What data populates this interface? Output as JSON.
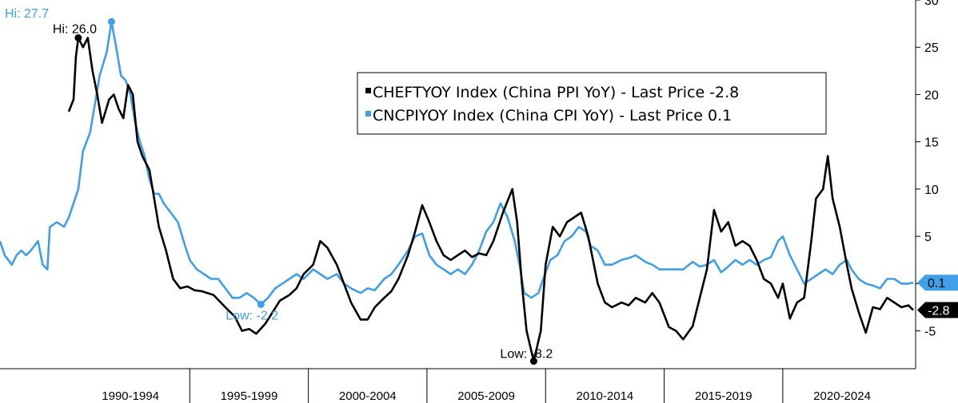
{
  "chart_data": {
    "type": "line",
    "x_start": 1987.0,
    "x_end": 2025.6,
    "ylim": [
      -9,
      30
    ],
    "y_ticks": [
      -5,
      0,
      5,
      10,
      15,
      20,
      25,
      30
    ],
    "x_categories": [
      "1990-1994",
      "1995-1999",
      "2000-2004",
      "2005-2009",
      "2010-2014",
      "2015-2019",
      "2020-2024"
    ],
    "x_category_bounds": [
      [
        1990,
        1995
      ],
      [
        1995,
        2000
      ],
      [
        2000,
        2005
      ],
      [
        2005,
        2010
      ],
      [
        2010,
        2015
      ],
      [
        2015,
        2020
      ],
      [
        2020,
        2025
      ]
    ],
    "legend": [
      {
        "label": "CHEFTYOY Index (China PPI YoY) - Last Price -2.8",
        "color": "#000000"
      },
      {
        "label": "CNCPIYOY Index (China CPI YoY) - Last Price 0.1",
        "color": "#3f9fe8"
      }
    ],
    "series": [
      {
        "name": "CHEFTYOY Index (China PPI YoY)",
        "color": "#000000",
        "last_value": -2.8,
        "last_label": "-2.8",
        "points": [
          [
            1989.9,
            18.2
          ],
          [
            1990.1,
            19.5
          ],
          [
            1990.2,
            24.0
          ],
          [
            1990.3,
            26.0
          ],
          [
            1990.5,
            25.0
          ],
          [
            1990.7,
            26.0
          ],
          [
            1990.9,
            22.5
          ],
          [
            1991.1,
            20.0
          ],
          [
            1991.3,
            17.0
          ],
          [
            1991.6,
            19.5
          ],
          [
            1991.8,
            20.0
          ],
          [
            1992.0,
            18.5
          ],
          [
            1992.2,
            17.5
          ],
          [
            1992.4,
            21.0
          ],
          [
            1992.6,
            20.0
          ],
          [
            1992.8,
            15.0
          ],
          [
            1993.0,
            13.5
          ],
          [
            1993.3,
            12.0
          ],
          [
            1993.5,
            9.0
          ],
          [
            1993.7,
            6.0
          ],
          [
            1994.0,
            3.5
          ],
          [
            1994.3,
            0.5
          ],
          [
            1994.6,
            -0.5
          ],
          [
            1994.9,
            -0.3
          ],
          [
            1995.2,
            -0.7
          ],
          [
            1995.5,
            -0.8
          ],
          [
            1996.0,
            -1.2
          ],
          [
            1996.5,
            -2.5
          ],
          [
            1996.9,
            -3.5
          ],
          [
            1997.2,
            -5.0
          ],
          [
            1997.5,
            -4.8
          ],
          [
            1997.8,
            -5.3
          ],
          [
            1998.2,
            -4.2
          ],
          [
            1998.5,
            -3.0
          ],
          [
            1998.8,
            -1.8
          ],
          [
            1999.2,
            -1.2
          ],
          [
            1999.5,
            -0.5
          ],
          [
            1999.8,
            1.0
          ],
          [
            2000.2,
            2.0
          ],
          [
            2000.5,
            4.5
          ],
          [
            2000.8,
            3.8
          ],
          [
            2001.2,
            2.0
          ],
          [
            2001.5,
            0.0
          ],
          [
            2001.8,
            -2.0
          ],
          [
            2002.2,
            -3.8
          ],
          [
            2002.5,
            -3.8
          ],
          [
            2002.8,
            -2.5
          ],
          [
            2003.2,
            -1.5
          ],
          [
            2003.5,
            -0.8
          ],
          [
            2003.8,
            0.5
          ],
          [
            2004.2,
            3.0
          ],
          [
            2004.5,
            5.5
          ],
          [
            2004.8,
            8.3
          ],
          [
            2005.1,
            6.5
          ],
          [
            2005.4,
            4.5
          ],
          [
            2005.7,
            3.0
          ],
          [
            2006.0,
            2.5
          ],
          [
            2006.3,
            3.0
          ],
          [
            2006.6,
            3.5
          ],
          [
            2006.9,
            2.8
          ],
          [
            2007.2,
            3.2
          ],
          [
            2007.5,
            3.0
          ],
          [
            2007.8,
            4.5
          ],
          [
            2008.2,
            7.5
          ],
          [
            2008.6,
            10.0
          ],
          [
            2008.8,
            6.5
          ],
          [
            2009.0,
            0.0
          ],
          [
            2009.2,
            -5.0
          ],
          [
            2009.5,
            -8.2
          ],
          [
            2009.8,
            -5.0
          ],
          [
            2010.0,
            2.0
          ],
          [
            2010.3,
            6.0
          ],
          [
            2010.6,
            5.0
          ],
          [
            2010.9,
            6.5
          ],
          [
            2011.2,
            7.0
          ],
          [
            2011.5,
            7.5
          ],
          [
            2011.8,
            5.0
          ],
          [
            2012.2,
            0.0
          ],
          [
            2012.5,
            -2.0
          ],
          [
            2012.8,
            -2.5
          ],
          [
            2013.2,
            -2.0
          ],
          [
            2013.5,
            -2.3
          ],
          [
            2013.8,
            -1.5
          ],
          [
            2014.2,
            -2.0
          ],
          [
            2014.5,
            -1.0
          ],
          [
            2014.8,
            -2.0
          ],
          [
            2015.2,
            -4.6
          ],
          [
            2015.5,
            -5.0
          ],
          [
            2015.8,
            -5.9
          ],
          [
            2016.2,
            -4.5
          ],
          [
            2016.5,
            -1.5
          ],
          [
            2016.8,
            1.5
          ],
          [
            2017.1,
            7.8
          ],
          [
            2017.4,
            5.5
          ],
          [
            2017.7,
            6.5
          ],
          [
            2018.0,
            4.0
          ],
          [
            2018.3,
            4.5
          ],
          [
            2018.6,
            4.0
          ],
          [
            2018.9,
            2.5
          ],
          [
            2019.2,
            0.5
          ],
          [
            2019.5,
            0.0
          ],
          [
            2019.8,
            -1.5
          ],
          [
            2020.0,
            0.0
          ],
          [
            2020.3,
            -3.7
          ],
          [
            2020.6,
            -2.0
          ],
          [
            2020.9,
            -1.5
          ],
          [
            2021.2,
            4.5
          ],
          [
            2021.4,
            9.0
          ],
          [
            2021.7,
            10.0
          ],
          [
            2021.9,
            13.5
          ],
          [
            2022.1,
            9.0
          ],
          [
            2022.4,
            6.0
          ],
          [
            2022.7,
            2.0
          ],
          [
            2022.9,
            -0.5
          ],
          [
            2023.2,
            -3.0
          ],
          [
            2023.5,
            -5.2
          ],
          [
            2023.8,
            -2.5
          ],
          [
            2024.1,
            -2.7
          ],
          [
            2024.4,
            -1.5
          ],
          [
            2024.7,
            -2.0
          ],
          [
            2025.0,
            -2.5
          ],
          [
            2025.3,
            -2.3
          ],
          [
            2025.5,
            -2.8
          ]
        ]
      },
      {
        "name": "CNCPIYOY Index (China CPI YoY)",
        "color": "#3f9fe8",
        "last_value": 0.1,
        "last_label": "0.1",
        "points": [
          [
            1987.0,
            4.5
          ],
          [
            1987.2,
            3.0
          ],
          [
            1987.5,
            2.0
          ],
          [
            1987.7,
            3.0
          ],
          [
            1987.9,
            3.5
          ],
          [
            1988.1,
            3.0
          ],
          [
            1988.3,
            3.5
          ],
          [
            1988.6,
            4.5
          ],
          [
            1988.8,
            2.0
          ],
          [
            1989.0,
            1.5
          ],
          [
            1989.1,
            6.0
          ],
          [
            1989.4,
            6.5
          ],
          [
            1989.7,
            6.0
          ],
          [
            1989.9,
            7.0
          ],
          [
            1990.1,
            8.5
          ],
          [
            1990.3,
            10.0
          ],
          [
            1990.5,
            14.0
          ],
          [
            1990.8,
            16.0
          ],
          [
            1991.0,
            19.0
          ],
          [
            1991.2,
            22.0
          ],
          [
            1991.5,
            24.5
          ],
          [
            1991.7,
            27.7
          ],
          [
            1991.9,
            25.0
          ],
          [
            1992.1,
            22.0
          ],
          [
            1992.3,
            21.5
          ],
          [
            1992.5,
            20.0
          ],
          [
            1992.7,
            17.0
          ],
          [
            1992.9,
            15.0
          ],
          [
            1993.1,
            13.5
          ],
          [
            1993.3,
            11.0
          ],
          [
            1993.5,
            9.5
          ],
          [
            1993.7,
            9.5
          ],
          [
            1993.9,
            8.5
          ],
          [
            1994.2,
            7.5
          ],
          [
            1994.5,
            6.5
          ],
          [
            1994.8,
            4.0
          ],
          [
            1995.0,
            2.5
          ],
          [
            1995.3,
            1.5
          ],
          [
            1995.6,
            1.0
          ],
          [
            1995.9,
            0.5
          ],
          [
            1996.2,
            0.5
          ],
          [
            1996.5,
            -0.5
          ],
          [
            1996.8,
            -1.5
          ],
          [
            1997.1,
            -1.5
          ],
          [
            1997.4,
            -1.0
          ],
          [
            1997.7,
            -1.5
          ],
          [
            1998.0,
            -2.2
          ],
          [
            1998.3,
            -1.5
          ],
          [
            1998.6,
            -0.5
          ],
          [
            1998.9,
            0.0
          ],
          [
            1999.2,
            0.5
          ],
          [
            1999.5,
            1.0
          ],
          [
            1999.8,
            0.5
          ],
          [
            2000.2,
            1.5
          ],
          [
            2000.5,
            1.0
          ],
          [
            2000.8,
            0.5
          ],
          [
            2001.2,
            1.0
          ],
          [
            2001.5,
            0.0
          ],
          [
            2001.8,
            -0.5
          ],
          [
            2002.2,
            -1.0
          ],
          [
            2002.5,
            -0.5
          ],
          [
            2002.8,
            -0.7
          ],
          [
            2003.2,
            0.5
          ],
          [
            2003.5,
            1.0
          ],
          [
            2003.8,
            2.0
          ],
          [
            2004.2,
            3.5
          ],
          [
            2004.5,
            5.0
          ],
          [
            2004.8,
            5.3
          ],
          [
            2005.1,
            3.0
          ],
          [
            2005.4,
            2.0
          ],
          [
            2005.7,
            1.5
          ],
          [
            2006.0,
            1.0
          ],
          [
            2006.3,
            1.5
          ],
          [
            2006.6,
            1.0
          ],
          [
            2006.9,
            2.0
          ],
          [
            2007.2,
            3.5
          ],
          [
            2007.5,
            5.5
          ],
          [
            2007.8,
            6.5
          ],
          [
            2008.1,
            8.5
          ],
          [
            2008.4,
            7.0
          ],
          [
            2008.7,
            4.5
          ],
          [
            2008.9,
            2.0
          ],
          [
            2009.1,
            -1.0
          ],
          [
            2009.4,
            -1.5
          ],
          [
            2009.7,
            -1.0
          ],
          [
            2009.9,
            0.5
          ],
          [
            2010.2,
            2.5
          ],
          [
            2010.5,
            3.0
          ],
          [
            2010.8,
            4.5
          ],
          [
            2011.1,
            5.0
          ],
          [
            2011.4,
            6.0
          ],
          [
            2011.7,
            5.5
          ],
          [
            2011.9,
            4.0
          ],
          [
            2012.2,
            3.5
          ],
          [
            2012.5,
            2.0
          ],
          [
            2012.8,
            2.0
          ],
          [
            2013.2,
            2.5
          ],
          [
            2013.5,
            2.7
          ],
          [
            2013.8,
            3.0
          ],
          [
            2014.2,
            2.3
          ],
          [
            2014.5,
            2.0
          ],
          [
            2014.8,
            1.5
          ],
          [
            2015.2,
            1.5
          ],
          [
            2015.5,
            1.5
          ],
          [
            2015.8,
            1.5
          ],
          [
            2016.2,
            2.3
          ],
          [
            2016.5,
            1.8
          ],
          [
            2016.8,
            2.0
          ],
          [
            2017.1,
            2.5
          ],
          [
            2017.4,
            1.2
          ],
          [
            2017.7,
            1.8
          ],
          [
            2018.0,
            2.5
          ],
          [
            2018.3,
            2.0
          ],
          [
            2018.6,
            2.5
          ],
          [
            2018.9,
            2.0
          ],
          [
            2019.2,
            2.5
          ],
          [
            2019.5,
            2.8
          ],
          [
            2019.8,
            4.5
          ],
          [
            2020.0,
            5.0
          ],
          [
            2020.3,
            3.0
          ],
          [
            2020.6,
            1.5
          ],
          [
            2020.9,
            0.0
          ],
          [
            2021.2,
            0.5
          ],
          [
            2021.5,
            1.0
          ],
          [
            2021.8,
            1.5
          ],
          [
            2022.1,
            1.0
          ],
          [
            2022.4,
            2.0
          ],
          [
            2022.7,
            2.5
          ],
          [
            2022.9,
            1.5
          ],
          [
            2023.2,
            0.5
          ],
          [
            2023.5,
            0.0
          ],
          [
            2023.8,
            -0.2
          ],
          [
            2024.1,
            -0.5
          ],
          [
            2024.4,
            0.5
          ],
          [
            2024.7,
            0.5
          ],
          [
            2025.0,
            0.0
          ],
          [
            2025.3,
            0.0
          ],
          [
            2025.5,
            0.1
          ]
        ]
      }
    ],
    "annotations": [
      {
        "text": "Hi: 27.7",
        "series": 1,
        "x": 1991.7,
        "y": 27.7
      },
      {
        "text": "Hi: 26.0",
        "series": 0,
        "x": 1990.3,
        "y": 26.0
      },
      {
        "text": "Low: -2.2",
        "series": 1,
        "x": 1998.0,
        "y": -2.2
      },
      {
        "text": "Low: -8.2",
        "series": 0,
        "x": 2009.5,
        "y": -8.2
      }
    ]
  }
}
